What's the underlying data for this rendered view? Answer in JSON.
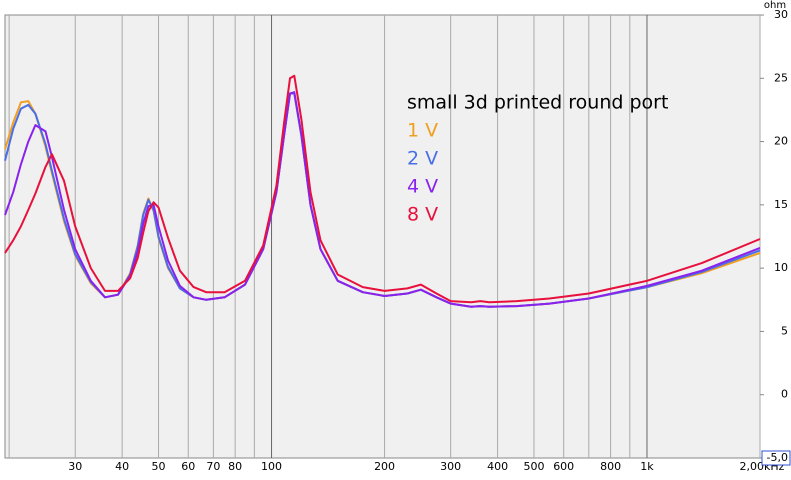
{
  "chart_data": {
    "type": "line",
    "title": "small 3d printed round port",
    "ylabel": "ohm",
    "xscale": "log",
    "grid": "x",
    "x": [
      19.5,
      20.5,
      21.5,
      22.5,
      23.5,
      25,
      26,
      28,
      30,
      33,
      36,
      39,
      42,
      44,
      45.5,
      47,
      48.5,
      50,
      53,
      57,
      62,
      67,
      75,
      85,
      95,
      103,
      108,
      112,
      115,
      120,
      127,
      135,
      150,
      175,
      200,
      230,
      250,
      275,
      300,
      340,
      360,
      380,
      450,
      550,
      700,
      1000,
      1400,
      2000
    ],
    "series": [
      {
        "name": "1 V",
        "color": "#f0a020",
        "values": [
          19.4,
          21.5,
          23.1,
          23.2,
          22.2,
          19.6,
          17.5,
          13.7,
          11.0,
          8.8,
          7.7,
          7.9,
          9.6,
          11.8,
          14.3,
          15.5,
          14.5,
          12.4,
          10.0,
          8.4,
          7.7,
          7.5,
          7.7,
          8.7,
          11.5,
          16.0,
          20.5,
          23.8,
          23.8,
          20.5,
          15.0,
          11.5,
          9.0,
          8.1,
          7.8,
          8.0,
          8.3,
          7.7,
          7.2,
          6.95,
          7.0,
          6.95,
          7.0,
          7.2,
          7.6,
          8.5,
          9.6,
          11.2
        ]
      },
      {
        "name": "2 V",
        "color": "#4a6ee8",
        "values": [
          18.5,
          21.0,
          22.6,
          22.9,
          22.2,
          19.8,
          17.7,
          13.9,
          11.1,
          8.9,
          7.7,
          7.9,
          9.5,
          11.7,
          14.2,
          15.4,
          14.6,
          12.5,
          10.1,
          8.4,
          7.7,
          7.5,
          7.7,
          8.7,
          11.5,
          16.0,
          20.5,
          23.8,
          23.8,
          20.5,
          15.0,
          11.5,
          9.0,
          8.1,
          7.8,
          8.0,
          8.3,
          7.7,
          7.2,
          6.95,
          7.0,
          6.95,
          7.0,
          7.2,
          7.6,
          8.5,
          9.7,
          11.4
        ]
      },
      {
        "name": "4 V",
        "color": "#8a22ee",
        "values": [
          14.2,
          16.0,
          18.2,
          20.0,
          21.3,
          20.8,
          18.8,
          14.6,
          11.5,
          9.0,
          7.7,
          7.9,
          9.4,
          11.3,
          13.5,
          14.9,
          15.0,
          13.3,
          10.6,
          8.6,
          7.7,
          7.5,
          7.7,
          8.7,
          11.5,
          16.0,
          20.5,
          23.8,
          23.9,
          20.6,
          15.0,
          11.5,
          9.0,
          8.1,
          7.8,
          8.0,
          8.3,
          7.7,
          7.2,
          6.95,
          7.0,
          6.95,
          7.0,
          7.2,
          7.6,
          8.6,
          9.8,
          11.6
        ]
      },
      {
        "name": "8 V",
        "color": "#e8103c",
        "values": [
          11.2,
          12.2,
          13.3,
          14.6,
          15.9,
          18.0,
          19.0,
          16.9,
          13.3,
          10.0,
          8.2,
          8.2,
          9.2,
          10.8,
          12.8,
          14.5,
          15.2,
          14.8,
          12.4,
          9.8,
          8.5,
          8.1,
          8.1,
          9.0,
          11.8,
          16.5,
          21.5,
          25.0,
          25.2,
          21.8,
          16.0,
          12.2,
          9.5,
          8.5,
          8.2,
          8.4,
          8.7,
          8.0,
          7.4,
          7.3,
          7.4,
          7.3,
          7.4,
          7.6,
          8.0,
          9.0,
          10.4,
          12.3
        ]
      }
    ],
    "xlim": [
      19.5,
      2000
    ],
    "ylim": [
      -5,
      30
    ],
    "xticks": [
      {
        "value": 20,
        "label": null
      },
      30,
      40,
      50,
      60,
      70,
      80,
      {
        "value": 90,
        "label": null
      },
      100,
      200,
      300,
      400,
      500,
      600,
      {
        "value": 700,
        "label": null
      },
      800,
      {
        "value": 900,
        "label": null
      },
      {
        "value": 1000,
        "label": "1k"
      },
      {
        "value": 2000,
        "label": "2,00kHz"
      }
    ],
    "yticks": [
      30,
      25,
      20,
      15,
      10,
      5,
      0,
      {
        "value": -5,
        "label": "-5,0"
      }
    ]
  }
}
